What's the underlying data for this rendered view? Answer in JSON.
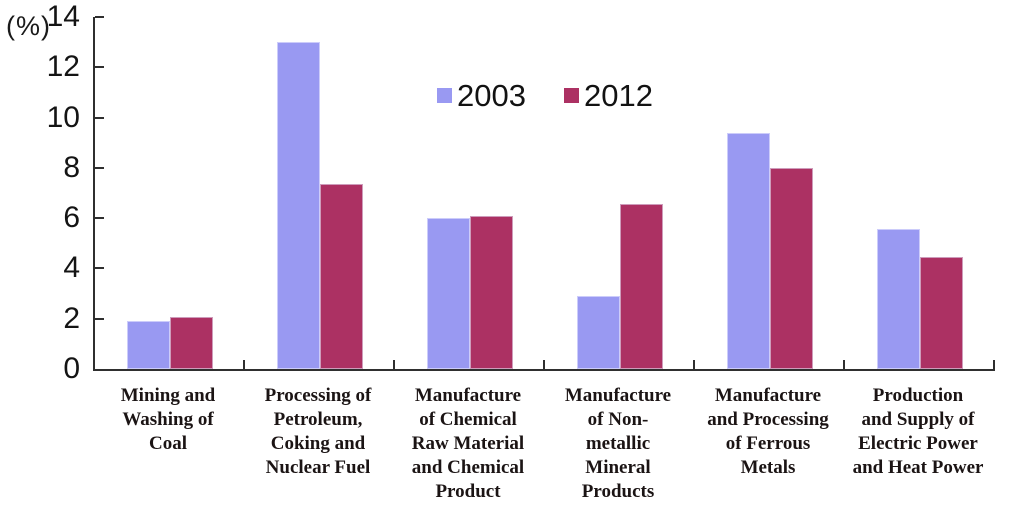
{
  "chart_data": {
    "type": "bar",
    "title": "",
    "ylabel": "(%)",
    "xlabel": "",
    "ylim": [
      0,
      14
    ],
    "yticks": [
      0,
      2,
      4,
      6,
      8,
      10,
      12,
      14
    ],
    "grid": false,
    "legend_position": "top-center-inside",
    "categories": [
      "Mining and Washing of Coal",
      "Processing of Petroleum, Coking and Nuclear Fuel",
      "Manufacture of Chemical Raw Material and Chemical Product",
      "Manufacture of Non-metallic Mineral Products",
      "Manufacture and Processing of Ferrous Metals",
      "Production and Supply of Electric Power and Heat Power"
    ],
    "categories_display": [
      "Mining and\nWashing of\nCoal",
      "Processing of\nPetroleum,\nCoking and\nNuclear Fuel",
      "Manufacture\nof Chemical\nRaw Material\nand Chemical\nProduct",
      "Manufacture\nof Non-\nmetallic\nMineral\nProducts",
      "Manufacture\nand Processing\nof Ferrous\nMetals",
      "Production\nand Supply of\nElectric Power\nand Heat Power"
    ],
    "series": [
      {
        "name": "2003",
        "color": "#9999F2",
        "border_color": "#CCCCFA",
        "values": [
          1.9,
          13.0,
          6.0,
          2.9,
          9.4,
          5.55
        ]
      },
      {
        "name": "2012",
        "color": "#AC3163",
        "border_color": "#CE9CBB",
        "values": [
          2.05,
          7.35,
          6.1,
          6.55,
          8.0,
          4.45
        ]
      }
    ]
  }
}
